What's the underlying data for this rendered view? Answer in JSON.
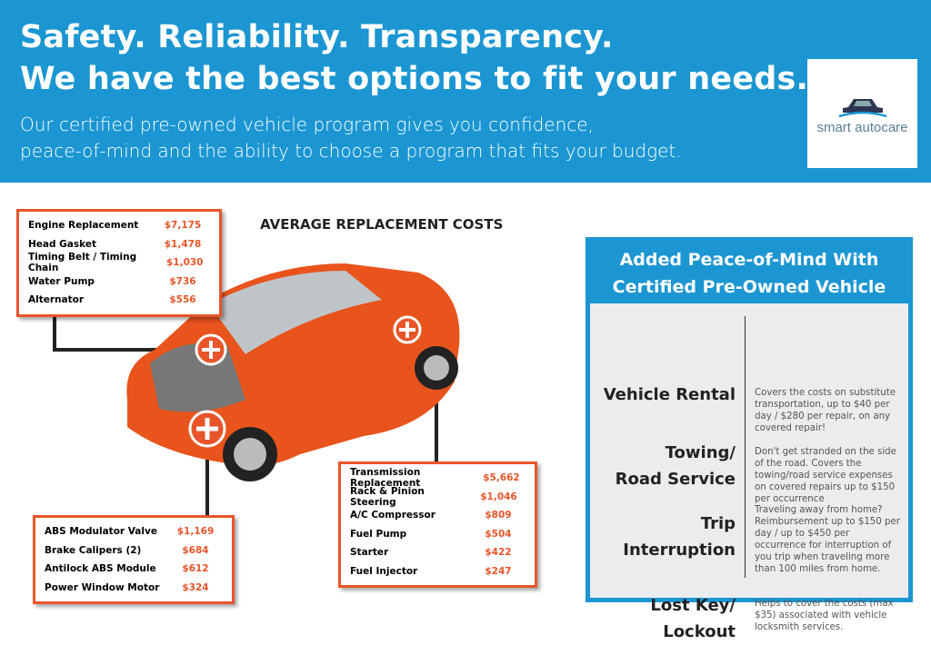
{
  "header": {
    "title_line1": "Safety. Reliability. Transparency.",
    "title_line2": "We have the best options to fit your needs.",
    "subtitle_line1": "Our certified pre-owned vehicle program gives you confidence,",
    "subtitle_line2": "peace-of-mind and the ability to choose a program that fits your budget."
  },
  "logo": {
    "text": "smart autocare",
    "icon": "car-icon"
  },
  "colors": {
    "brand_blue": "#1b96d2",
    "accent_orange": "#e8552a",
    "panel_gray": "#ececee"
  },
  "costs_heading": "AVERAGE REPLACEMENT COSTS",
  "engine_costs": [
    {
      "item": "Engine Replacement",
      "price": "$7,175"
    },
    {
      "item": "Head Gasket",
      "price": "$1,478"
    },
    {
      "item": "Timing Belt / Timing Chain",
      "price": "$1,030"
    },
    {
      "item": "Water Pump",
      "price": "$736"
    },
    {
      "item": "Alternator",
      "price": "$556"
    }
  ],
  "brake_costs": [
    {
      "item": "ABS Modulator Valve",
      "price": "$1,169"
    },
    {
      "item": "Brake Calipers (2)",
      "price": "$684"
    },
    {
      "item": "Antilock ABS Module",
      "price": "$612"
    },
    {
      "item": "Power Window Motor",
      "price": "$324"
    }
  ],
  "drivetrain_costs": [
    {
      "item": "Transmission Replacement",
      "price": "$5,662"
    },
    {
      "item": "Rack & Pinion Steering",
      "price": "$1,046"
    },
    {
      "item": "A/C Compressor",
      "price": "$809"
    },
    {
      "item": "Fuel Pump",
      "price": "$504"
    },
    {
      "item": "Starter",
      "price": "$422"
    },
    {
      "item": "Fuel Injector",
      "price": "$247"
    }
  ],
  "panel": {
    "title_line1": "Added Peace-of-Mind With",
    "title_line2": "Certified Pre-Owned Vehicle",
    "benefits": [
      {
        "label_line1": "Vehicle Rental",
        "label_line2": "",
        "desc": "Covers the costs on substitute transportation, up to $40 per day / $280 per repair, on any covered repair!"
      },
      {
        "label_line1": "Towing/",
        "label_line2": "Road Service",
        "desc": "Don't get stranded on the side of the road. Covers the towing/road service expenses on covered repairs up to $150 per occurrence"
      },
      {
        "label_line1": "Trip",
        "label_line2": "Interruption",
        "desc": "Traveling away from home? Reimbursement up to $150 per day / up to $450 per occurrence for interruption of you trip when traveling more than 100 miles from home."
      },
      {
        "label_line1": "Lost Key/",
        "label_line2": "Lockout",
        "desc": "Helps to cover the costs (max $35) associated with vehicle locksmith services."
      }
    ]
  }
}
